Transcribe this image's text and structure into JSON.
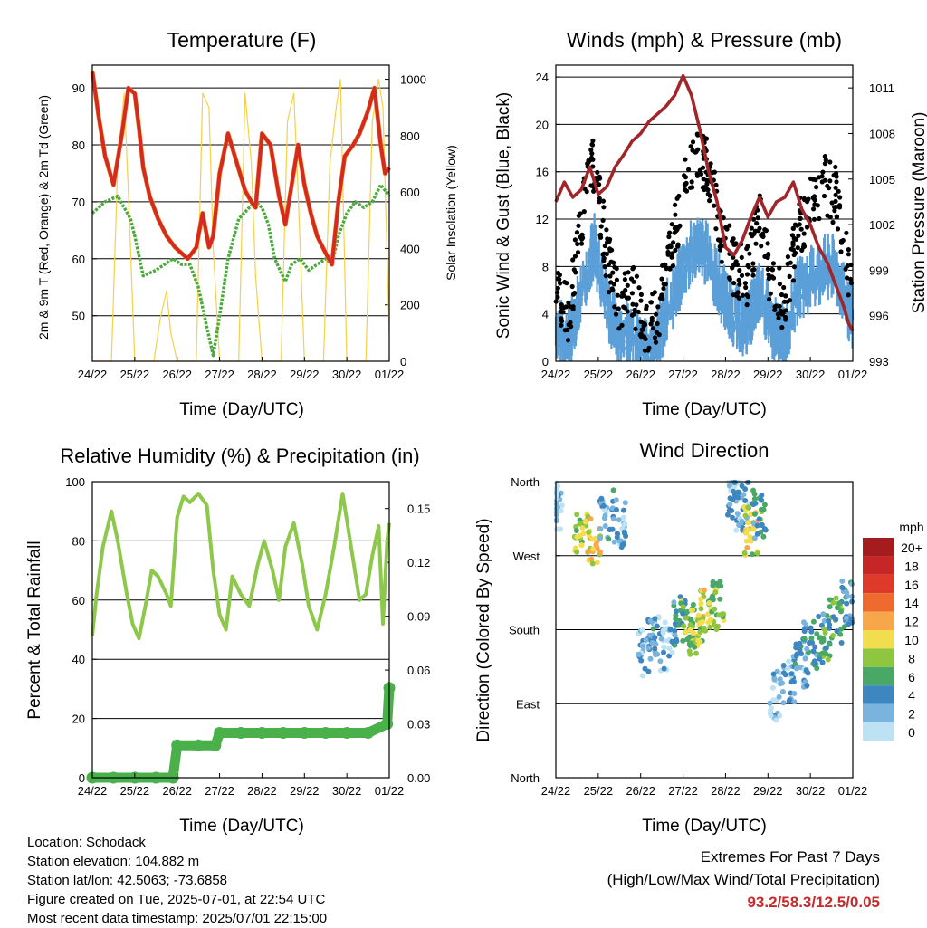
{
  "x_ticks": [
    "24/22",
    "25/22",
    "26/22",
    "27/22",
    "28/22",
    "29/22",
    "30/22",
    "01/22"
  ],
  "panels": {
    "temperature": {
      "title": "Temperature (F)",
      "xlabel": "Time (Day/UTC)",
      "ylabel_left": "2m & 9m T (Red, Orange) & 2m Td (Green)",
      "ylabel_right": "Solar Insolation (Yellow)",
      "left_ticks": [
        "50",
        "60",
        "70",
        "80",
        "90"
      ],
      "right_ticks": [
        "0",
        "200",
        "400",
        "600",
        "800",
        "1000"
      ]
    },
    "winds": {
      "title": "Winds (mph) & Pressure (mb)",
      "xlabel": "Time (Day/UTC)",
      "ylabel_left": "Sonic Wind & Gust (Blue, Black)",
      "ylabel_right": "Station Pressure (Maroon)",
      "left_ticks": [
        "0",
        "4",
        "8",
        "12",
        "16",
        "20",
        "24"
      ],
      "right_ticks": [
        "993",
        "996",
        "999",
        "1002",
        "1005",
        "1008",
        "1011"
      ]
    },
    "humidity": {
      "title": "Relative Humidity (%) & Precipitation (in)",
      "xlabel": "Time (Day/UTC)",
      "ylabel_left": "Percent & Total Rainfall",
      "left_ticks": [
        "0",
        "20",
        "40",
        "60",
        "80",
        "100"
      ],
      "right_ticks": [
        "0.00",
        "0.03",
        "0.06",
        "0.09",
        "0.12",
        "0.15"
      ]
    },
    "direction": {
      "title": "Wind Direction",
      "xlabel": "Time (Day/UTC)",
      "ylabel_left": "Direction (Colored By Speed)",
      "left_ticks": [
        "North",
        "East",
        "South",
        "West",
        "North"
      ],
      "legend_title": "mph",
      "legend_labels": [
        "20+",
        "18",
        "16",
        "14",
        "12",
        "10",
        "8",
        "6",
        "4",
        "2",
        "0"
      ],
      "legend_colors": [
        "#a51c1f",
        "#c72627",
        "#dd3a2a",
        "#ee6a2e",
        "#f7a64a",
        "#f2dd4e",
        "#8ec63f",
        "#4aa867",
        "#3d86c0",
        "#79b3de",
        "#bde2f4"
      ]
    }
  },
  "info": {
    "location": "Location: Schodack",
    "elevation": "Station elevation: 104.882 m",
    "latlon": "Station lat/lon: 42.5063; -73.6858",
    "created": "Figure created on Tue, 2025-07-01, at 22:54 UTC",
    "recent": "Most recent data timestamp: 2025/07/01 22:15:00"
  },
  "extremes": {
    "line1": "Extremes For Past 7 Days",
    "line2": "(High/Low/Max Wind/Total Precipitation)",
    "values": "93.2/58.3/12.5/0.05"
  },
  "colors": {
    "temp_2m": "#d42a22",
    "temp_9m": "#f39a2b",
    "dewpoint": "#4aaa3a",
    "solar": "#f5d04a",
    "wind": "#5a9fd8",
    "gust": "#000000",
    "pressure": "#a0262a",
    "rh": "#8dc84a",
    "precip": "#4ab04a"
  },
  "chart_data": [
    {
      "type": "line",
      "title": "Temperature (F)",
      "x_unit": "day",
      "ylim": [
        42,
        94
      ],
      "y2lim": [
        0,
        1050
      ],
      "series": [
        {
          "name": "2m & 9m T (Red, Orange)",
          "x": [
            0,
            0.15,
            0.3,
            0.5,
            0.7,
            0.85,
            1.0,
            1.1,
            1.2,
            1.35,
            1.55,
            1.75,
            1.95,
            2.1,
            2.25,
            2.45,
            2.6,
            2.75,
            2.85,
            3.0,
            3.2,
            3.4,
            3.6,
            3.75,
            3.85,
            4.0,
            4.2,
            4.4,
            4.55,
            4.7,
            4.85,
            5.0,
            5.15,
            5.3,
            5.5,
            5.65,
            5.8,
            5.95,
            6.15,
            6.3,
            6.5,
            6.65,
            6.8,
            6.9,
            7.0
          ],
          "values": [
            93,
            85,
            78,
            73,
            82,
            90,
            89,
            83,
            76,
            71,
            67,
            64,
            62,
            61,
            60,
            62,
            68,
            62,
            64,
            75,
            82,
            77,
            72,
            70,
            69,
            82,
            80,
            71,
            66,
            73,
            80,
            73,
            68,
            64,
            61,
            59,
            70,
            78,
            80,
            82,
            86,
            90,
            80,
            75,
            76
          ]
        },
        {
          "name": "2m Td (Green)",
          "x": [
            0,
            0.3,
            0.6,
            0.9,
            1.0,
            1.2,
            1.5,
            1.7,
            1.9,
            2.1,
            2.3,
            2.5,
            2.7,
            2.85,
            3.0,
            3.2,
            3.45,
            3.7,
            3.85,
            4.0,
            4.15,
            4.3,
            4.55,
            4.7,
            4.9,
            5.1,
            5.3,
            5.5,
            5.65,
            5.8,
            6.0,
            6.2,
            6.4,
            6.6,
            6.8,
            6.9,
            7.0
          ],
          "values": [
            68,
            70,
            71,
            67,
            64,
            57,
            58,
            59,
            60,
            59,
            59,
            55,
            48,
            43,
            50,
            60,
            67,
            69,
            70,
            69,
            66,
            60,
            56,
            59,
            60,
            58,
            59,
            60,
            59,
            64,
            68,
            70,
            69,
            70,
            73,
            72,
            71
          ]
        },
        {
          "name": "Solar Insolation (Yellow)",
          "x": [
            0,
            0.45,
            0.6,
            0.75,
            0.85,
            1.0,
            1.45,
            1.6,
            1.75,
            1.85,
            2.0,
            2.45,
            2.6,
            2.75,
            2.85,
            3.0,
            3.45,
            3.6,
            3.75,
            3.85,
            4.0,
            4.45,
            4.6,
            4.75,
            4.85,
            5.0,
            5.45,
            5.6,
            5.75,
            5.85,
            6.0,
            6.45,
            6.6,
            6.75,
            6.85,
            7.0
          ],
          "values": [
            0,
            0,
            700,
            950,
            600,
            0,
            0,
            150,
            250,
            100,
            0,
            0,
            950,
            900,
            400,
            0,
            0,
            950,
            700,
            300,
            0,
            0,
            850,
            950,
            600,
            0,
            0,
            700,
            900,
            1000,
            0,
            0,
            850,
            1000,
            900,
            100
          ],
          "axis": "right"
        }
      ]
    },
    {
      "type": "line",
      "title": "Winds (mph) & Pressure (mb)",
      "x_unit": "day",
      "ylim": [
        0,
        25
      ],
      "y2lim": [
        993,
        1012.5
      ],
      "series": [
        {
          "name": "Sonic Wind & Gust (Blue, Black)",
          "x": [
            0,
            0.3,
            0.6,
            0.9,
            1.2,
            1.5,
            1.8,
            2.1,
            2.4,
            2.7,
            3.0,
            3.3,
            3.6,
            3.9,
            4.2,
            4.5,
            4.8,
            5.1,
            5.4,
            5.7,
            6.0,
            6.3,
            6.6,
            6.9
          ],
          "values": [
            3,
            2,
            6,
            10,
            5,
            2,
            3,
            1,
            2,
            5,
            8,
            10,
            9,
            6,
            4,
            3,
            6,
            3,
            2,
            6,
            7,
            8,
            8,
            4
          ]
        },
        {
          "name": "Gust",
          "x": [
            0,
            0.3,
            0.6,
            0.9,
            1.2,
            1.5,
            1.8,
            2.1,
            2.4,
            2.7,
            3.0,
            3.3,
            3.6,
            3.9,
            4.2,
            4.5,
            4.8,
            5.1,
            5.4,
            5.7,
            6.0,
            6.3,
            6.6,
            6.9
          ],
          "values": [
            6,
            4,
            12,
            17,
            9,
            5,
            6,
            3,
            4,
            9,
            14,
            18,
            16,
            11,
            8,
            7,
            12,
            6,
            5,
            11,
            13,
            15,
            14,
            8
          ]
        },
        {
          "name": "Station Pressure (Maroon)",
          "x": [
            0,
            0.2,
            0.4,
            0.6,
            0.8,
            1.0,
            1.2,
            1.4,
            1.6,
            1.8,
            2.0,
            2.2,
            2.4,
            2.6,
            2.8,
            3.0,
            3.2,
            3.4,
            3.6,
            3.8,
            4.0,
            4.2,
            4.4,
            4.6,
            4.8,
            5.0,
            5.2,
            5.4,
            5.6,
            5.8,
            6.0,
            6.2,
            6.4,
            6.6,
            6.8,
            6.9,
            7.0
          ],
          "values": [
            1003.5,
            1004.8,
            1003.8,
            1004.3,
            1005.8,
            1004,
            1004.5,
            1005.8,
            1006.6,
            1007.5,
            1008,
            1008.8,
            1009.3,
            1009.8,
            1010.5,
            1011.8,
            1010.5,
            1008.2,
            1005.5,
            1003.5,
            1000.5,
            1000,
            1001,
            1002.5,
            1003.8,
            1002.5,
            1003.5,
            1003.8,
            1004.8,
            1003,
            1002,
            1000.5,
            999.5,
            998,
            996.5,
            995.5,
            995
          ]
        }
      ]
    },
    {
      "type": "line",
      "title": "Relative Humidity (%) & Precipitation (in)",
      "x_unit": "day",
      "ylim": [
        0,
        100
      ],
      "y2lim": [
        0,
        0.165
      ],
      "series": [
        {
          "x": [
            0,
            0.1,
            0.25,
            0.45,
            0.6,
            0.8,
            0.95,
            1.1,
            1.25,
            1.4,
            1.55,
            1.75,
            1.85,
            2.0,
            2.15,
            2.3,
            2.5,
            2.7,
            2.85,
            3.0,
            3.15,
            3.3,
            3.5,
            3.7,
            3.9,
            4.05,
            4.25,
            4.4,
            4.55,
            4.75,
            4.95,
            5.1,
            5.3,
            5.5,
            5.7,
            5.9,
            6.1,
            6.3,
            6.45,
            6.6,
            6.75,
            6.85,
            6.95,
            7.0
          ],
          "values": [
            48,
            62,
            78,
            90,
            80,
            63,
            52,
            47,
            58,
            70,
            68,
            62,
            58,
            88,
            95,
            93,
            96,
            92,
            70,
            55,
            50,
            68,
            62,
            58,
            72,
            80,
            70,
            60,
            78,
            86,
            72,
            58,
            50,
            62,
            78,
            96,
            78,
            60,
            62,
            75,
            85,
            52,
            80,
            86
          ]
        },
        {
          "name": "precip",
          "x": [
            0,
            0.5,
            1.0,
            1.5,
            1.9,
            2.0,
            2.5,
            2.9,
            3.0,
            3.5,
            4.0,
            4.5,
            5.0,
            5.5,
            6.0,
            6.5,
            6.95,
            7.0
          ],
          "values": [
            0,
            0,
            0,
            0,
            0,
            0.018,
            0.018,
            0.018,
            0.025,
            0.025,
            0.025,
            0.025,
            0.025,
            0.025,
            0.025,
            0.025,
            0.03,
            0.05
          ],
          "axis": "right"
        }
      ]
    },
    {
      "type": "scatter",
      "title": "Wind Direction",
      "x_unit": "day",
      "y_categories": [
        "North",
        "East",
        "South",
        "West",
        "North"
      ],
      "series": [
        {
          "x": [
            0,
            0.6,
            0.9,
            1.2,
            1.5,
            2.1,
            2.3,
            2.6,
            2.9,
            3.1,
            3.3,
            3.5,
            3.8,
            4.2,
            4.4,
            4.6,
            4.8,
            5.2,
            5.5,
            5.8,
            6.0,
            6.3,
            6.6,
            6.9
          ],
          "values": [
            330,
            300,
            290,
            320,
            310,
            150,
            170,
            160,
            190,
            190,
            180,
            200,
            210,
            340,
            330,
            300,
            320,
            100,
            120,
            140,
            160,
            170,
            190,
            210
          ],
          "speed_mph": [
            2,
            9,
            11,
            4,
            3,
            3,
            4,
            2,
            6,
            8,
            9,
            10,
            8,
            3,
            4,
            10,
            6,
            2,
            3,
            4,
            5,
            6,
            7,
            5
          ]
        }
      ]
    }
  ]
}
